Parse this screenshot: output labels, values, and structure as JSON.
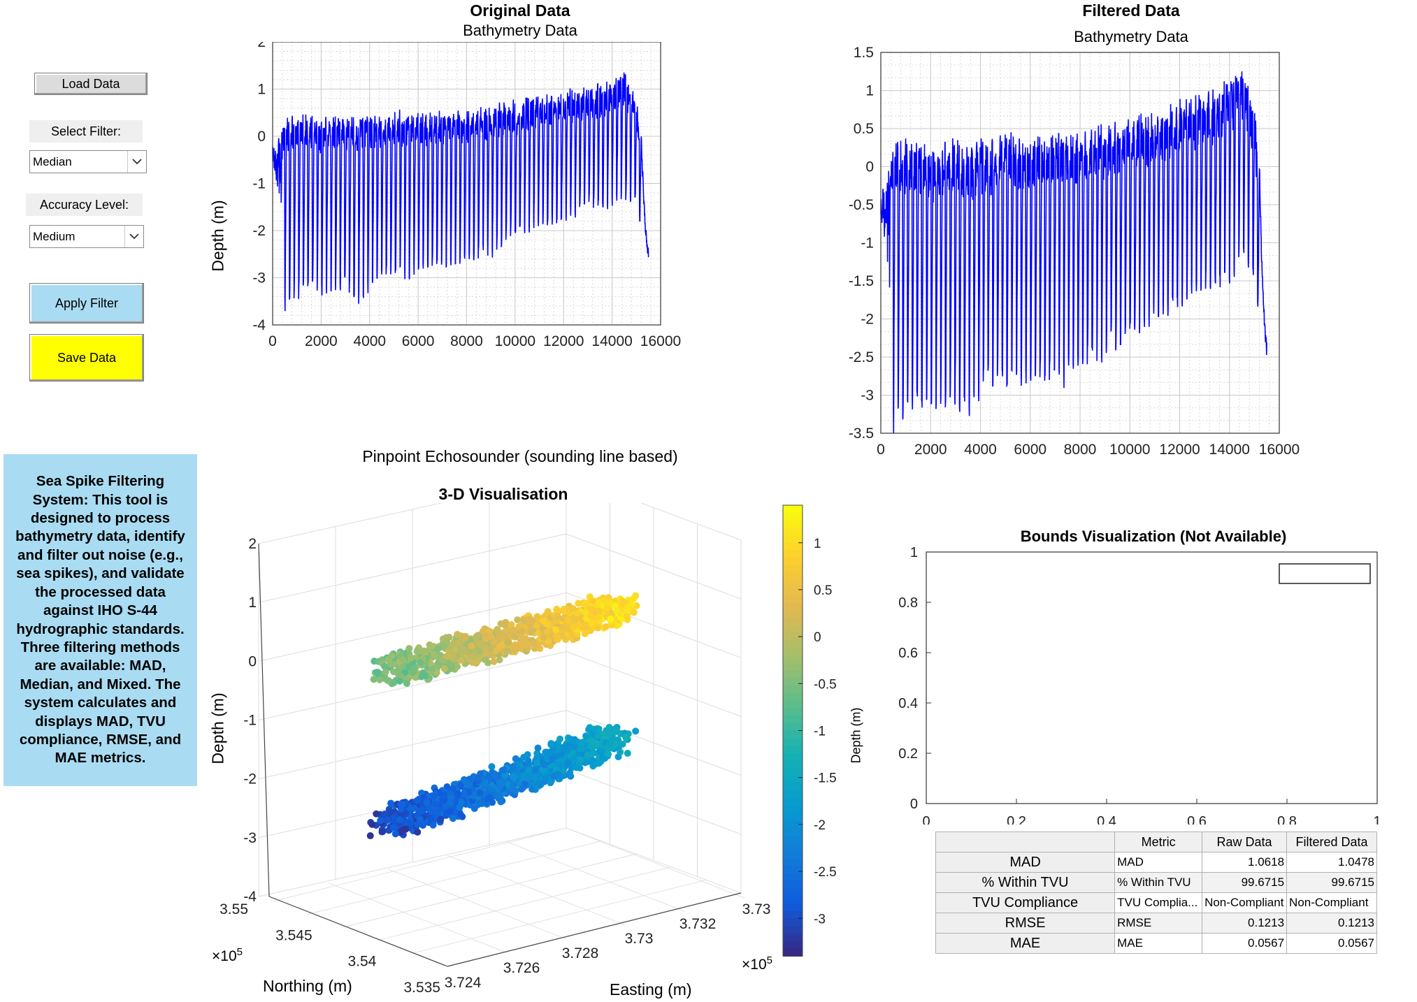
{
  "controls": {
    "load_button": "Load Data",
    "filter_label": "Select Filter:",
    "filter_value": "Median",
    "accuracy_label": "Accuracy Level:",
    "accuracy_value": "Medium",
    "apply_button": "Apply Filter",
    "save_button": "Save Data",
    "colors": {
      "apply": "#a9dcf2",
      "save": "#ffff00",
      "description_bg": "#a9dcf2"
    }
  },
  "description": "Sea Spike Filtering System: This tool is designed to process bathymetry data, identify and filter out noise (e.g., sea spikes), and validate the processed data against IHO S-44 hydrographic standards. Three filtering methods are available: MAD, Median, and Mixed. The system calculates and displays MAD, TVU compliance, RMSE, and MAE metrics.",
  "original_plot": {
    "title": "Original Data",
    "subtitle": "Bathymetry Data",
    "xlabel": "Pinpoint Echosounder (sounding line based)",
    "ylabel": "Depth (m)"
  },
  "filtered_plot": {
    "title": "Filtered Data",
    "subtitle": "Bathymetry Data"
  },
  "plot3d": {
    "title": "3-D Visualisation",
    "zlabel": "Depth (m)",
    "ylabel": "Northing (m)",
    "xlabel": "Easting (m)",
    "x_exponent": "×10",
    "y_exponent": "×10",
    "exp_power": "5",
    "colorbar_label": "Depth (m)"
  },
  "bounds_plot": {
    "title": "Bounds Visualization (Not Available)"
  },
  "metrics_table": {
    "headers": [
      "Metric",
      "Raw Data",
      "Filtered Data"
    ],
    "rows": [
      {
        "row_label": "MAD",
        "metric": "MAD",
        "raw": "1.0618",
        "filtered": "1.0478"
      },
      {
        "row_label": "% Within TVU",
        "metric": "% Within TVU",
        "raw": "99.6715",
        "filtered": "99.6715"
      },
      {
        "row_label": "TVU Compliance",
        "metric": "TVU Complia...",
        "raw": "Non-Compliant",
        "filtered": "Non-Compliant"
      },
      {
        "row_label": "RMSE",
        "metric": "RMSE",
        "raw": "0.1213",
        "filtered": "0.1213"
      },
      {
        "row_label": "MAE",
        "metric": "MAE",
        "raw": "0.0567",
        "filtered": "0.0567"
      }
    ]
  },
  "chart_data": [
    {
      "type": "line",
      "title": "Original Data",
      "subtitle": "Bathymetry Data",
      "xlabel": "Pinpoint Echosounder (sounding line based)",
      "ylabel": "Depth (m)",
      "xlim": [
        0,
        16000
      ],
      "ylim": [
        -4,
        2
      ],
      "xticks": [
        "0",
        "2000",
        "4000",
        "6000",
        "8000",
        "10000",
        "12000",
        "14000",
        "16000"
      ],
      "yticks": [
        "2",
        "1",
        "0",
        "-1",
        "-2",
        "-3",
        "-4"
      ],
      "grid": true,
      "color": "#0000ff",
      "series": [
        {
          "x": [
            0,
            400,
            500,
            1000,
            1500,
            2000,
            2500,
            3000,
            3500,
            4000,
            4500,
            5000,
            6000,
            7000,
            8000,
            9000,
            10000,
            11000,
            12000,
            13000,
            14000,
            14500,
            15000,
            15200,
            15500
          ],
          "upper": [
            -0.3,
            0.2,
            0.3,
            0.4,
            0.4,
            0.3,
            0.4,
            0.4,
            0.3,
            0.4,
            0.4,
            0.5,
            0.4,
            0.5,
            0.5,
            0.6,
            0.7,
            0.8,
            0.9,
            1.0,
            1.1,
            1.3,
            0.8,
            0.0,
            -2.5
          ],
          "lower": [
            -0.5,
            -3.5,
            -3.6,
            -3.5,
            -3.3,
            -3.3,
            -3.4,
            -3.2,
            -3.6,
            -3.3,
            -3.0,
            -3.0,
            -3.0,
            -2.8,
            -2.7,
            -2.5,
            -2.2,
            -2.0,
            -1.8,
            -1.6,
            -1.5,
            -1.4,
            -1.5,
            -2.0,
            -2.5
          ]
        }
      ]
    },
    {
      "type": "line",
      "title": "Filtered Data",
      "subtitle": "Bathymetry Data",
      "xlim": [
        0,
        16000
      ],
      "ylim": [
        -3.5,
        1.5
      ],
      "xticks": [
        "0",
        "2000",
        "4000",
        "6000",
        "8000",
        "10000",
        "12000",
        "14000",
        "16000"
      ],
      "yticks": [
        "1.5",
        "1",
        "0.5",
        "0",
        "-0.5",
        "-1",
        "-1.5",
        "-2",
        "-2.5",
        "-3",
        "-3.5"
      ],
      "grid": true,
      "color": "#0000ff",
      "series": [
        {
          "x": [
            0,
            400,
            500,
            1000,
            1500,
            2000,
            2500,
            3000,
            3500,
            4000,
            4500,
            5000,
            6000,
            7000,
            8000,
            9000,
            10000,
            11000,
            12000,
            13000,
            14000,
            14500,
            15000,
            15200,
            15500
          ],
          "upper": [
            -0.5,
            0.1,
            0.2,
            0.3,
            0.3,
            0.2,
            0.3,
            0.3,
            0.2,
            0.3,
            0.3,
            0.4,
            0.3,
            0.4,
            0.4,
            0.5,
            0.6,
            0.7,
            0.8,
            0.9,
            1.1,
            1.3,
            0.8,
            0.0,
            -2.4
          ],
          "lower": [
            -0.6,
            -3.3,
            -3.4,
            -3.3,
            -3.2,
            -3.2,
            -3.3,
            -3.2,
            -3.3,
            -3.0,
            -2.9,
            -2.9,
            -2.9,
            -2.8,
            -2.7,
            -2.5,
            -2.3,
            -2.1,
            -1.9,
            -1.7,
            -1.5,
            -1.3,
            -1.5,
            -2.0,
            -2.4
          ]
        }
      ]
    },
    {
      "type": "scatter",
      "title": "3-D Visualisation",
      "xlabel": "Easting (m)",
      "ylabel": "Northing (m)",
      "zlabel": "Depth (m)",
      "xticks": [
        "3.724",
        "3.726",
        "3.728",
        "3.73",
        "3.732",
        "3.73"
      ],
      "yticks": [
        "3.535",
        "3.54",
        "3.545",
        "3.55"
      ],
      "zticks": [
        "2",
        "1",
        "0",
        "-1",
        "-2",
        "-3",
        "-4"
      ],
      "zlim": [
        -4,
        2
      ],
      "colormap": "parula",
      "colorbar_ticks": [
        "1",
        "0.5",
        "0",
        "-0.5",
        "-1",
        "-1.5",
        "-2",
        "-2.5",
        "-3"
      ],
      "colorbar_range": [
        -3.4,
        1.4
      ],
      "clusters": [
        {
          "name": "upper",
          "depth_range": [
            -0.6,
            1.0
          ]
        },
        {
          "name": "lower",
          "depth_range": [
            -3.1,
            -1.5
          ]
        }
      ]
    },
    {
      "type": "line",
      "title": "Bounds Visualization (Not Available)",
      "xlim": [
        0,
        1
      ],
      "ylim": [
        0,
        1
      ],
      "xticks": [
        "0",
        "0.2",
        "0.4",
        "0.6",
        "0.8",
        "1"
      ],
      "yticks": [
        "1",
        "0.8",
        "0.6",
        "0.4",
        "0.2",
        "0"
      ],
      "grid": false,
      "series": []
    }
  ]
}
